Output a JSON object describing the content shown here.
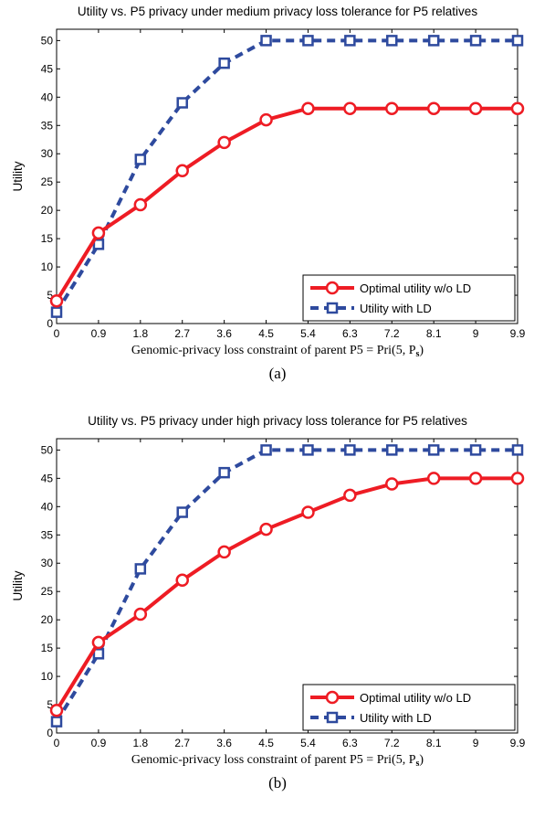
{
  "chart_data": [
    {
      "type": "line",
      "title": "Utility vs. P5 privacy under medium privacy loss tolerance for P5 relatives",
      "xlabel": "Genomic-privacy loss constraint of parent P5 = Pri(5, P",
      "xlabel_sub": "s",
      "xlabel_end": ")",
      "ylabel": "Utility",
      "caption": "(a)",
      "x": [
        0,
        0.9,
        1.8,
        2.7,
        3.6,
        4.5,
        5.4,
        6.3,
        7.2,
        8.1,
        9,
        9.9
      ],
      "xticks": [
        "0",
        "0.9",
        "1.8",
        "2.7",
        "3.6",
        "4.5",
        "5.4",
        "6.3",
        "7.2",
        "8.1",
        "9",
        "9.9"
      ],
      "yticks": [
        "0",
        "5",
        "10",
        "15",
        "20",
        "25",
        "30",
        "35",
        "40",
        "45",
        "50"
      ],
      "xlim": [
        0,
        9.9
      ],
      "ylim": [
        0,
        52
      ],
      "legend_position": "bottom-right",
      "series": [
        {
          "name": "Optimal utility w/o LD",
          "color": "#ee1c24",
          "marker": "circle",
          "style": "solid",
          "values": [
            4,
            16,
            21,
            27,
            32,
            36,
            38,
            38,
            38,
            38,
            38,
            38
          ]
        },
        {
          "name": "Utility with LD",
          "color": "#2e4a9e",
          "marker": "square",
          "style": "dashed",
          "values": [
            2,
            14,
            29,
            39,
            46,
            50,
            50,
            50,
            50,
            50,
            50,
            50
          ]
        }
      ]
    },
    {
      "type": "line",
      "title": "Utility vs. P5 privacy under high privacy loss tolerance for P5 relatives",
      "xlabel": "Genomic-privacy loss constraint of parent P5 = Pri(5, P",
      "xlabel_sub": "s",
      "xlabel_end": ")",
      "ylabel": "Utility",
      "caption": "(b)",
      "x": [
        0,
        0.9,
        1.8,
        2.7,
        3.6,
        4.5,
        5.4,
        6.3,
        7.2,
        8.1,
        9,
        9.9
      ],
      "xticks": [
        "0",
        "0.9",
        "1.8",
        "2.7",
        "3.6",
        "4.5",
        "5.4",
        "6.3",
        "7.2",
        "8.1",
        "9",
        "9.9"
      ],
      "yticks": [
        "0",
        "5",
        "10",
        "15",
        "20",
        "25",
        "30",
        "35",
        "40",
        "45",
        "50"
      ],
      "xlim": [
        0,
        9.9
      ],
      "ylim": [
        0,
        52
      ],
      "legend_position": "bottom-right",
      "series": [
        {
          "name": "Optimal utility w/o LD",
          "color": "#ee1c24",
          "marker": "circle",
          "style": "solid",
          "values": [
            4,
            16,
            21,
            27,
            32,
            36,
            39,
            42,
            44,
            45,
            45,
            45
          ]
        },
        {
          "name": "Utility with LD",
          "color": "#2e4a9e",
          "marker": "square",
          "style": "dashed",
          "values": [
            2,
            14,
            29,
            39,
            46,
            50,
            50,
            50,
            50,
            50,
            50,
            50
          ]
        }
      ]
    }
  ]
}
